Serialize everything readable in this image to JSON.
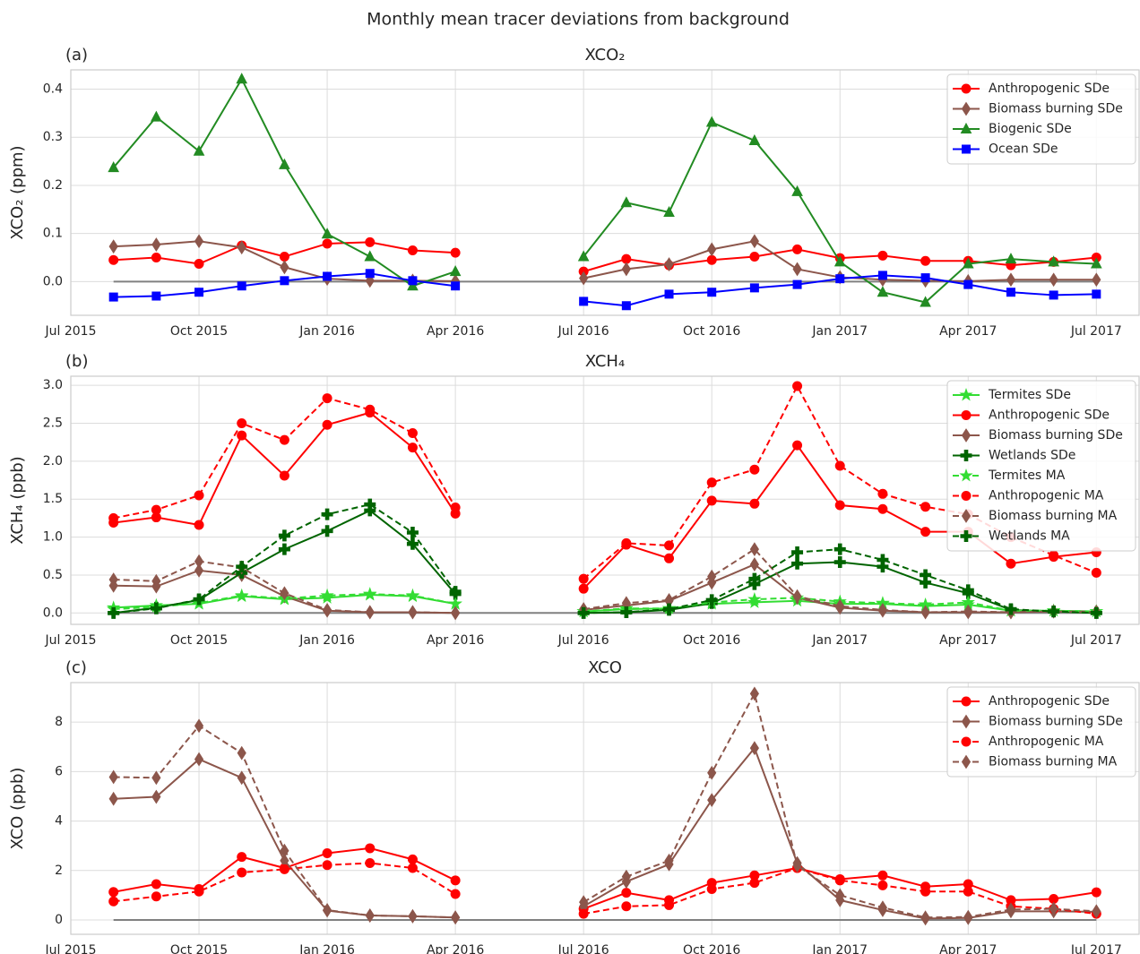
{
  "title": "Monthly mean tracer deviations from background",
  "chart_data": [
    {
      "type": "line",
      "panel_label": "(a)",
      "title": "XCO₂",
      "y_label": "XCO₂ (ppm)",
      "x": [
        "2015-08",
        "2015-09",
        "2015-10",
        "2015-11",
        "2015-12",
        "2016-01",
        "2016-02",
        "2016-03",
        "2016-04",
        "2016-05",
        "2016-06",
        "2016-07",
        "2016-08",
        "2016-09",
        "2016-10",
        "2016-11",
        "2016-12",
        "2017-01",
        "2017-02",
        "2017-03",
        "2017-04",
        "2017-05",
        "2017-06",
        "2017-07"
      ],
      "xlim": [
        "2015-07",
        "2017-08"
      ],
      "xticks": [
        {
          "value": "2015-07",
          "label": "Jul 2015"
        },
        {
          "value": "2015-10",
          "label": "Oct 2015"
        },
        {
          "value": "2016-01",
          "label": "Jan 2016"
        },
        {
          "value": "2016-04",
          "label": "Apr 2016"
        },
        {
          "value": "2016-07",
          "label": "Jul 2016"
        },
        {
          "value": "2016-10",
          "label": "Oct 2016"
        },
        {
          "value": "2017-01",
          "label": "Jan 2017"
        },
        {
          "value": "2017-04",
          "label": "Apr 2017"
        },
        {
          "value": "2017-07",
          "label": "Jul 2017"
        }
      ],
      "ylim": [
        -0.07,
        0.44
      ],
      "yticks": [
        {
          "value": 0,
          "label": "0.0"
        },
        0.1,
        0.2,
        0.3,
        0.4
      ],
      "grid": true,
      "legend": "upper right",
      "series": [
        {
          "name": "Anthropogenic SDe",
          "color": "#ff0000",
          "marker": "circle",
          "linestyle": "solid",
          "values": [
            0.045,
            0.05,
            0.037,
            0.075,
            0.052,
            0.079,
            0.082,
            0.065,
            0.06,
            null,
            null,
            0.021,
            0.047,
            0.034,
            0.045,
            0.052,
            0.067,
            0.049,
            0.054,
            0.043,
            0.043,
            0.034,
            0.041,
            0.05
          ]
        },
        {
          "name": "Biomass burning SDe",
          "color": "#8c564b",
          "marker": "diamond",
          "linestyle": "solid",
          "values": [
            0.073,
            0.077,
            0.084,
            0.071,
            0.03,
            0.006,
            0.002,
            0.002,
            0.001,
            null,
            null,
            0.007,
            0.026,
            0.036,
            0.067,
            0.084,
            0.026,
            0.009,
            0.004,
            0.002,
            0.001,
            0.004,
            0.004,
            0.004
          ]
        },
        {
          "name": "Biogenic SDe",
          "color": "#228b22",
          "marker": "triangle",
          "linestyle": "solid",
          "values": [
            0.237,
            0.342,
            0.271,
            0.421,
            0.243,
            0.099,
            0.052,
            -0.009,
            0.021,
            null,
            null,
            0.052,
            0.164,
            0.144,
            0.331,
            0.293,
            0.187,
            0.041,
            -0.022,
            -0.043,
            0.037,
            0.047,
            0.041,
            0.037
          ]
        },
        {
          "name": "Ocean SDe",
          "color": "#0000ff",
          "marker": "square",
          "linestyle": "solid",
          "values": [
            -0.032,
            -0.03,
            -0.022,
            -0.009,
            0.002,
            0.011,
            0.017,
            0.002,
            -0.009,
            null,
            null,
            -0.041,
            -0.05,
            -0.026,
            -0.022,
            -0.013,
            -0.006,
            0.006,
            0.013,
            0.008,
            -0.006,
            -0.022,
            -0.028,
            -0.026
          ]
        }
      ]
    },
    {
      "type": "line",
      "panel_label": "(b)",
      "title": "XCH₄",
      "y_label": "XCH₄ (ppb)",
      "x": [
        "2015-08",
        "2015-09",
        "2015-10",
        "2015-11",
        "2015-12",
        "2016-01",
        "2016-02",
        "2016-03",
        "2016-04",
        "2016-05",
        "2016-06",
        "2016-07",
        "2016-08",
        "2016-09",
        "2016-10",
        "2016-11",
        "2016-12",
        "2017-01",
        "2017-02",
        "2017-03",
        "2017-04",
        "2017-05",
        "2017-06",
        "2017-07"
      ],
      "xlim": [
        "2015-07",
        "2017-08"
      ],
      "xticks": [
        {
          "value": "2015-07",
          "label": "Jul 2015"
        },
        {
          "value": "2015-10",
          "label": "Oct 2015"
        },
        {
          "value": "2016-01",
          "label": "Jan 2016"
        },
        {
          "value": "2016-04",
          "label": "Apr 2016"
        },
        {
          "value": "2016-07",
          "label": "Jul 2016"
        },
        {
          "value": "2016-10",
          "label": "Oct 2016"
        },
        {
          "value": "2017-01",
          "label": "Jan 2017"
        },
        {
          "value": "2017-04",
          "label": "Apr 2017"
        },
        {
          "value": "2017-07",
          "label": "Jul 2017"
        }
      ],
      "ylim": [
        -0.15,
        3.12
      ],
      "yticks": [
        {
          "value": 0,
          "label": "0.0"
        },
        0.5,
        {
          "value": 1,
          "label": "1.0"
        },
        1.5,
        {
          "value": 2,
          "label": "2.0"
        },
        2.5,
        {
          "value": 3,
          "label": "3.0"
        }
      ],
      "grid": true,
      "legend": "upper right",
      "series": [
        {
          "name": "Termites SDe",
          "color": "#33dd33",
          "marker": "star",
          "linestyle": "solid",
          "values": [
            0.07,
            0.1,
            0.12,
            0.22,
            0.18,
            0.2,
            0.24,
            0.22,
            0.12,
            null,
            null,
            0.02,
            0.05,
            0.06,
            0.12,
            0.14,
            0.16,
            0.12,
            0.12,
            0.09,
            0.11,
            0.03,
            0.03,
            0.02
          ]
        },
        {
          "name": "Anthropogenic SDe",
          "color": "#ff0000",
          "marker": "circle",
          "linestyle": "solid",
          "values": [
            1.19,
            1.26,
            1.16,
            2.34,
            1.81,
            2.48,
            2.64,
            2.18,
            1.31,
            null,
            null,
            0.32,
            0.9,
            0.72,
            1.48,
            1.44,
            2.21,
            1.42,
            1.37,
            1.07,
            1.07,
            0.65,
            0.74,
            0.8
          ]
        },
        {
          "name": "Biomass burning SDe",
          "color": "#8c564b",
          "marker": "diamond",
          "linestyle": "solid",
          "values": [
            0.36,
            0.35,
            0.56,
            0.5,
            0.22,
            0.03,
            0.01,
            0.01,
            0.0,
            null,
            null,
            0.04,
            0.1,
            0.16,
            0.4,
            0.64,
            0.2,
            0.07,
            0.03,
            0.01,
            0.01,
            0.01,
            0.02,
            0.02
          ]
        },
        {
          "name": "Wetlands SDe",
          "color": "#006400",
          "marker": "plus",
          "linestyle": "solid",
          "values": [
            0.0,
            0.07,
            0.17,
            0.53,
            0.84,
            1.08,
            1.35,
            0.91,
            0.25,
            null,
            null,
            0.0,
            0.01,
            0.04,
            0.13,
            0.38,
            0.65,
            0.67,
            0.61,
            0.4,
            0.26,
            0.04,
            0.02,
            0.0
          ]
        },
        {
          "name": "Termites MA",
          "color": "#33dd33",
          "marker": "star",
          "linestyle": "dashed",
          "values": [
            0.05,
            0.08,
            0.13,
            0.23,
            0.19,
            0.23,
            0.25,
            0.23,
            0.12,
            null,
            null,
            0.02,
            0.06,
            0.06,
            0.14,
            0.18,
            0.2,
            0.15,
            0.13,
            0.11,
            0.14,
            0.03,
            0.03,
            0.02
          ]
        },
        {
          "name": "Anthropogenic MA",
          "color": "#ff0000",
          "marker": "circle",
          "linestyle": "dashed",
          "values": [
            1.25,
            1.36,
            1.55,
            2.5,
            2.28,
            2.83,
            2.68,
            2.37,
            1.39,
            null,
            null,
            0.45,
            0.92,
            0.89,
            1.72,
            1.89,
            2.99,
            1.94,
            1.57,
            1.4,
            1.3,
            1.0,
            0.76,
            0.53
          ]
        },
        {
          "name": "Biomass burning MA",
          "color": "#8c564b",
          "marker": "diamond",
          "linestyle": "dashed",
          "values": [
            0.44,
            0.42,
            0.68,
            0.6,
            0.26,
            0.04,
            0.01,
            0.01,
            0.0,
            null,
            null,
            0.05,
            0.13,
            0.17,
            0.48,
            0.84,
            0.22,
            0.09,
            0.04,
            0.01,
            0.02,
            0.01,
            0.02,
            0.01
          ]
        },
        {
          "name": "Wetlands MA",
          "color": "#006400",
          "marker": "plus",
          "linestyle": "dashed",
          "values": [
            0.0,
            0.06,
            0.18,
            0.61,
            1.02,
            1.3,
            1.43,
            1.06,
            0.28,
            null,
            null,
            0.0,
            0.01,
            0.05,
            0.17,
            0.45,
            0.8,
            0.84,
            0.7,
            0.5,
            0.3,
            0.05,
            0.02,
            0.0
          ]
        }
      ]
    },
    {
      "type": "line",
      "panel_label": "(c)",
      "title": "XCO",
      "y_label": "XCO (ppb)",
      "x": [
        "2015-08",
        "2015-09",
        "2015-10",
        "2015-11",
        "2015-12",
        "2016-01",
        "2016-02",
        "2016-03",
        "2016-04",
        "2016-05",
        "2016-06",
        "2016-07",
        "2016-08",
        "2016-09",
        "2016-10",
        "2016-11",
        "2016-12",
        "2017-01",
        "2017-02",
        "2017-03",
        "2017-04",
        "2017-05",
        "2017-06",
        "2017-07"
      ],
      "xlim": [
        "2015-07",
        "2017-08"
      ],
      "xticks": [
        {
          "value": "2015-07",
          "label": "Jul 2015"
        },
        {
          "value": "2015-10",
          "label": "Oct 2015"
        },
        {
          "value": "2016-01",
          "label": "Jan 2016"
        },
        {
          "value": "2016-04",
          "label": "Apr 2016"
        },
        {
          "value": "2016-07",
          "label": "Jul 2016"
        },
        {
          "value": "2016-10",
          "label": "Oct 2016"
        },
        {
          "value": "2017-01",
          "label": "Jan 2017"
        },
        {
          "value": "2017-04",
          "label": "Apr 2017"
        },
        {
          "value": "2017-07",
          "label": "Jul 2017"
        }
      ],
      "ylim": [
        -0.58,
        9.6
      ],
      "yticks": [
        0,
        2,
        4,
        6,
        8
      ],
      "grid": true,
      "legend": "upper right",
      "series": [
        {
          "name": "Anthropogenic SDe",
          "color": "#ff0000",
          "marker": "circle",
          "linestyle": "solid",
          "values": [
            1.13,
            1.45,
            1.25,
            2.55,
            2.1,
            2.7,
            2.9,
            2.45,
            1.6,
            null,
            null,
            0.45,
            1.1,
            0.8,
            1.5,
            1.8,
            2.1,
            1.65,
            1.8,
            1.35,
            1.45,
            0.8,
            0.85,
            1.12
          ]
        },
        {
          "name": "Biomass burning SDe",
          "color": "#8c564b",
          "marker": "diamond",
          "linestyle": "solid",
          "values": [
            4.9,
            4.98,
            6.5,
            5.75,
            2.4,
            0.38,
            0.18,
            0.15,
            0.1,
            null,
            null,
            0.55,
            1.55,
            2.25,
            4.85,
            6.95,
            2.3,
            0.8,
            0.4,
            0.06,
            0.08,
            0.35,
            0.35,
            0.33
          ]
        },
        {
          "name": "Anthropogenic MA",
          "color": "#ff0000",
          "marker": "circle",
          "linestyle": "dashed",
          "values": [
            0.75,
            0.95,
            1.15,
            1.92,
            2.05,
            2.22,
            2.3,
            2.1,
            1.05,
            null,
            null,
            0.25,
            0.55,
            0.6,
            1.25,
            1.5,
            2.1,
            1.6,
            1.4,
            1.15,
            1.15,
            0.55,
            0.45,
            0.25
          ]
        },
        {
          "name": "Biomass burning MA",
          "color": "#8c564b",
          "marker": "diamond",
          "linestyle": "dashed",
          "values": [
            5.78,
            5.75,
            7.85,
            6.75,
            2.8,
            0.4,
            0.18,
            0.15,
            0.1,
            null,
            null,
            0.72,
            1.75,
            2.4,
            5.95,
            9.15,
            2.2,
            1.0,
            0.5,
            0.1,
            0.12,
            0.42,
            0.45,
            0.35
          ]
        }
      ]
    }
  ]
}
